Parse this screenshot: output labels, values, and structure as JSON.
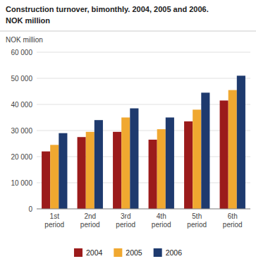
{
  "chart_data": {
    "type": "bar",
    "title": "Construction turnover, bimonthly. 2004, 2005 and 2006.",
    "subtitle": "NOK million",
    "y_label": "NOK million",
    "categories": [
      "1st\nperiod",
      "2nd\nperiod",
      "3rd\nperiod",
      "4th\nperiod",
      "5th\nperiod",
      "6th\nperiod"
    ],
    "series": [
      {
        "name": "2004",
        "color": "#9b1b1b",
        "values": [
          22000,
          27500,
          29500,
          26500,
          33500,
          41500
        ]
      },
      {
        "name": "2005",
        "color": "#f0a830",
        "values": [
          24500,
          29500,
          35000,
          30500,
          38000,
          45500
        ]
      },
      {
        "name": "2006",
        "color": "#1e3a6e",
        "values": [
          29000,
          34000,
          38500,
          35000,
          44500,
          51000
        ]
      }
    ],
    "ylim": [
      0,
      60000
    ],
    "yticks": [
      0,
      {
        "value": 10000,
        "label": "10 000"
      },
      {
        "value": 20000,
        "label": "20 000"
      },
      {
        "value": 30000,
        "label": "30 000"
      },
      {
        "value": 40000,
        "label": "40 000"
      },
      {
        "value": 50000,
        "label": "50 000"
      },
      {
        "value": 60000,
        "label": "60 000"
      }
    ],
    "grid": true,
    "legend": "bottom"
  }
}
